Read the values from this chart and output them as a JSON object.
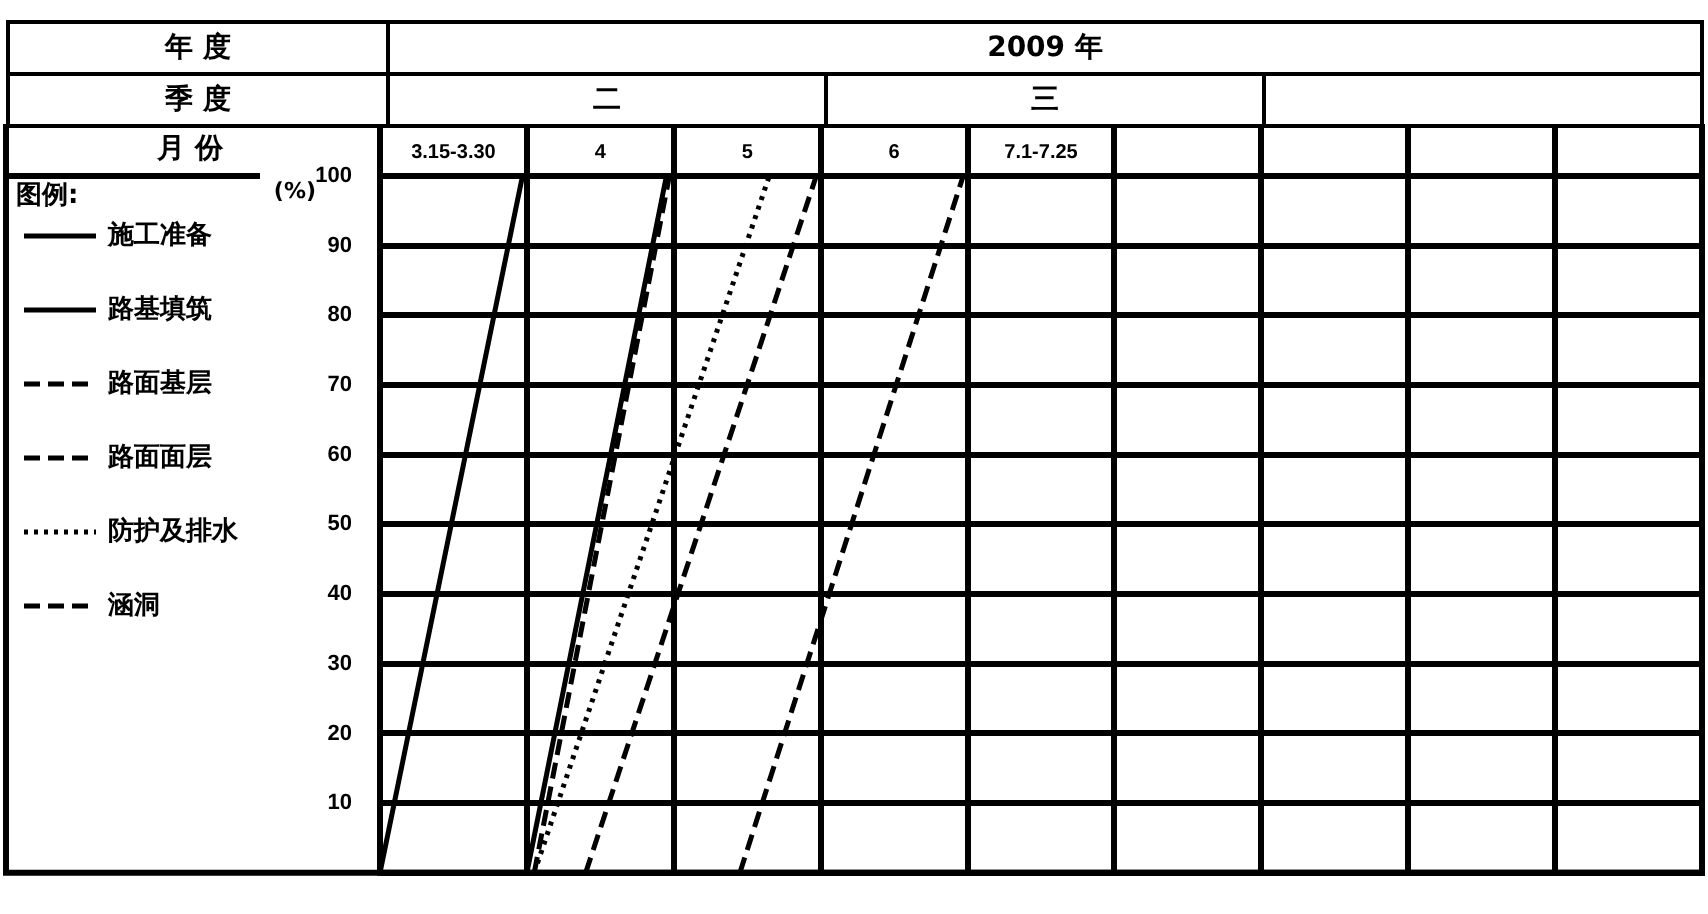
{
  "chart_data": {
    "type": "line",
    "xlabel": "月 份",
    "ylabel": "(%)",
    "legend_title": "图例:",
    "legend": "left",
    "grid": true,
    "marker": "none",
    "annotations": [
      "年 度",
      "2009 年",
      "季 度",
      "二",
      "三"
    ],
    "xlim": [
      2.5,
      11.5
    ],
    "xticks": [
      {
        "value": 2.5,
        "label": null
      },
      {
        "value": 3,
        "label": "3.15-3.30"
      },
      {
        "value": 3.5,
        "label": null
      },
      4,
      {
        "value": 4.5,
        "label": null
      },
      5,
      {
        "value": 5.5,
        "label": null
      },
      6,
      {
        "value": 6.5,
        "label": null
      },
      {
        "value": 7,
        "label": "7.1-7.25"
      },
      {
        "value": 7.5,
        "label": null
      },
      {
        "value": 8.5,
        "label": null
      },
      {
        "value": 9.5,
        "label": null
      },
      {
        "value": 10.5,
        "label": null
      },
      {
        "value": 11.5,
        "label": null
      }
    ],
    "ylim": [
      0,
      100
    ],
    "yticks": [
      {
        "value": 0,
        "label": null
      },
      10,
      20,
      30,
      40,
      50,
      60,
      70,
      80,
      90,
      100
    ],
    "series": [
      {
        "name": "施工准备",
        "color": "#000000",
        "line_style": "solid",
        "x": [
          2.5,
          3.47
        ],
        "values": [
          0,
          100
        ]
      },
      {
        "name": "路基填筑",
        "color": "#000000",
        "line_style": "solid",
        "x": [
          3.5,
          4.45
        ],
        "values": [
          0,
          100
        ]
      },
      {
        "name": "路面基层",
        "color": "#000000",
        "line_style": "dashed",
        "x": [
          3.9,
          5.47
        ],
        "values": [
          0,
          100
        ]
      },
      {
        "name": "路面面层",
        "color": "#000000",
        "line_style": "dashed",
        "x": [
          4.95,
          6.47
        ],
        "values": [
          0,
          100
        ]
      },
      {
        "name": "防护及排水",
        "color": "#000000",
        "line_style": "dotted",
        "x": [
          3.55,
          5.15
        ],
        "values": [
          0,
          100
        ]
      },
      {
        "name": "涵洞",
        "color": "#000000",
        "line_style": "dashed",
        "x": [
          3.55,
          4.47
        ],
        "values": [
          0,
          100
        ]
      }
    ]
  }
}
